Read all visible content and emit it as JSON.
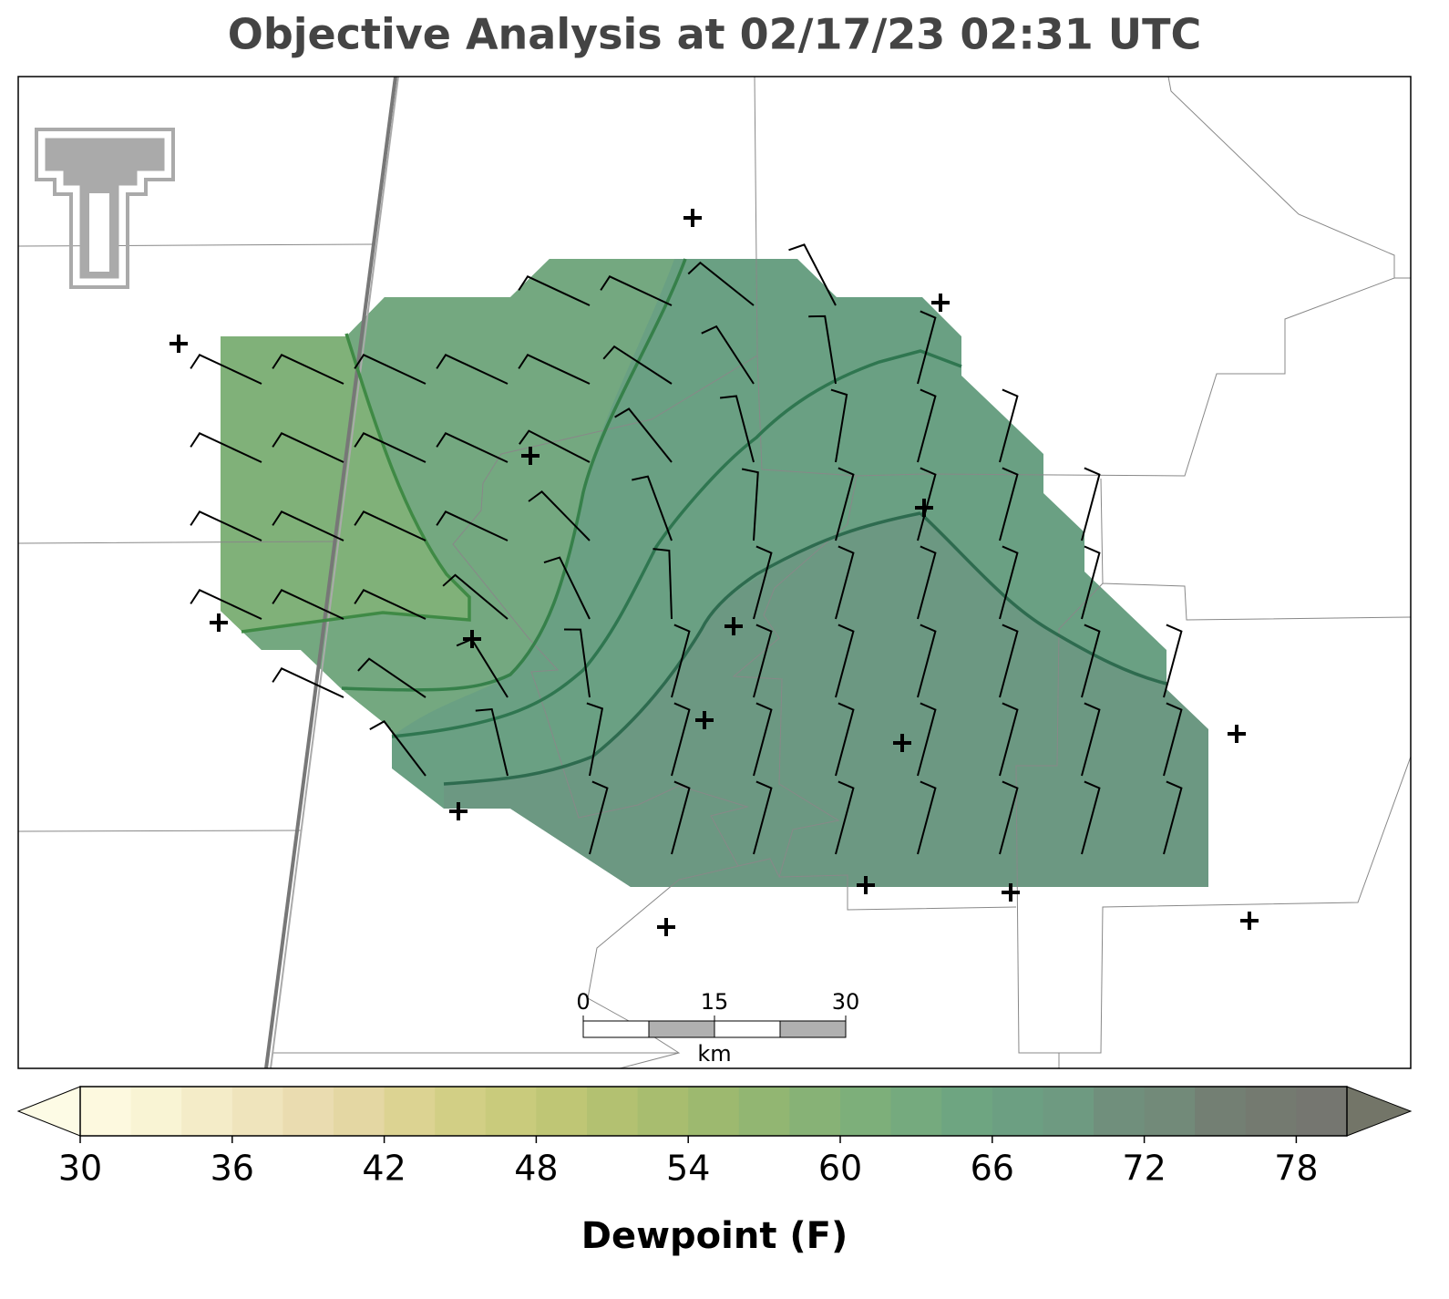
{
  "title": "Objective Analysis at 02/17/23 02:31 UTC",
  "scale_bar": {
    "ticks": [
      0,
      15,
      30
    ],
    "unit": "km"
  },
  "colorbar": {
    "label": "Dewpoint (F)",
    "lim": [
      30,
      80
    ],
    "ticks": [
      30,
      36,
      42,
      48,
      54,
      60,
      66,
      72,
      78
    ],
    "colors": [
      "#fdf9df",
      "#f9f4d4",
      "#f4ecc8",
      "#efe4bc",
      "#eadcb0",
      "#e4d7a3",
      "#dcd392",
      "#d2cf85",
      "#c9cb7c",
      "#bfc675",
      "#b3c171",
      "#a8bd6f",
      "#9db96f",
      "#92b672",
      "#87b276",
      "#7daf7a",
      "#75aa7e",
      "#6ea581",
      "#6c9f82",
      "#6e9a81",
      "#708f7c",
      "#728a79",
      "#737f73",
      "#747a70",
      "#757670"
    ],
    "extend_colors": [
      "#fdfbe5",
      "#737568"
    ]
  }
}
